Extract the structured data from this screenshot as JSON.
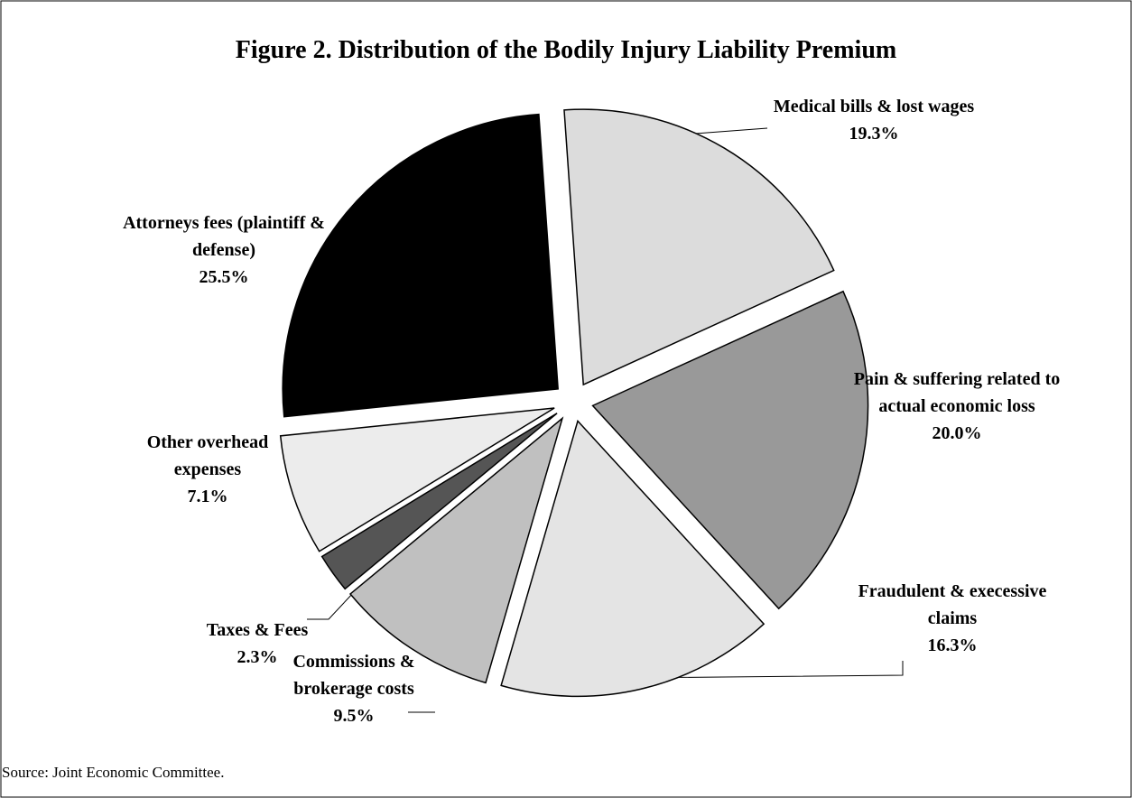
{
  "chart_data": {
    "type": "pie",
    "title": "Figure 2. Distribution of the Bodily Injury Liability Premium",
    "categories": [
      "Medical bills & lost wages",
      "Pain & suffering related to actual economic loss",
      "Fraudulent & execessive claims",
      "Commissions & brokerage costs",
      "Taxes & Fees",
      "Other overhead expenses",
      "Attorneys fees (plaintiff & defense)"
    ],
    "values": [
      19.3,
      20.0,
      16.3,
      9.5,
      2.3,
      7.1,
      25.5
    ],
    "value_labels": [
      "19.3%",
      "20.0%",
      "16.3%",
      "9.5%",
      "2.3%",
      "7.1%",
      "25.5%"
    ],
    "colors": [
      "#dcdcdc",
      "#999999",
      "#e4e4e4",
      "#c0c0c0",
      "#555555",
      "#ececec",
      "#000000"
    ],
    "source": "Source: Joint Economic Committee."
  }
}
